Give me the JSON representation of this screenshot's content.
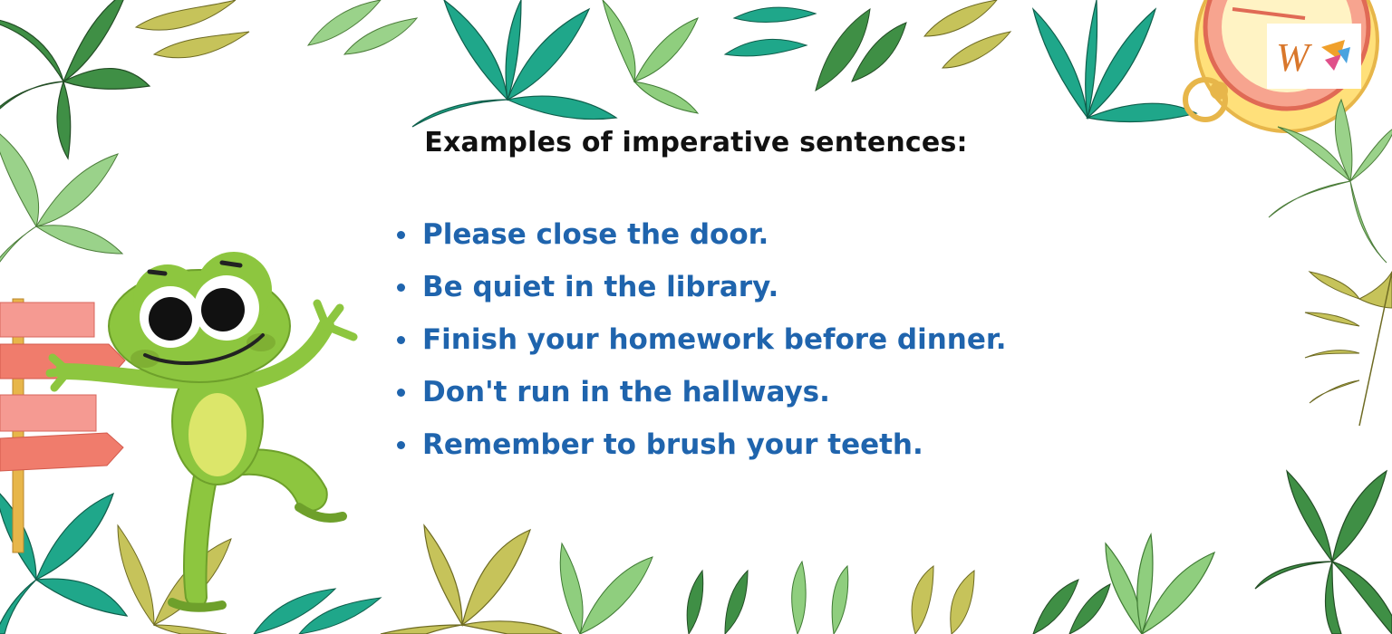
{
  "title": "Examples of imperative sentences:",
  "examples": [
    "Please close the door.",
    "Be quiet in the library.",
    "Finish your homework before dinner.",
    "Don't run in the hallways.",
    "Remember to brush your teeth."
  ],
  "logo_letter": "W",
  "colors": {
    "text_title": "#111111",
    "text_examples": "#1f64ad",
    "frog_green": "#8dc63f",
    "leaf_teal": "#1fa78a",
    "leaf_light": "#8fce7e",
    "leaf_olive": "#c6c35a",
    "sign_salmon": "#f07c6c"
  },
  "icons": [
    "frog-illustration",
    "signpost-illustration",
    "compass-illustration",
    "leaf-frame",
    "logo-w"
  ]
}
